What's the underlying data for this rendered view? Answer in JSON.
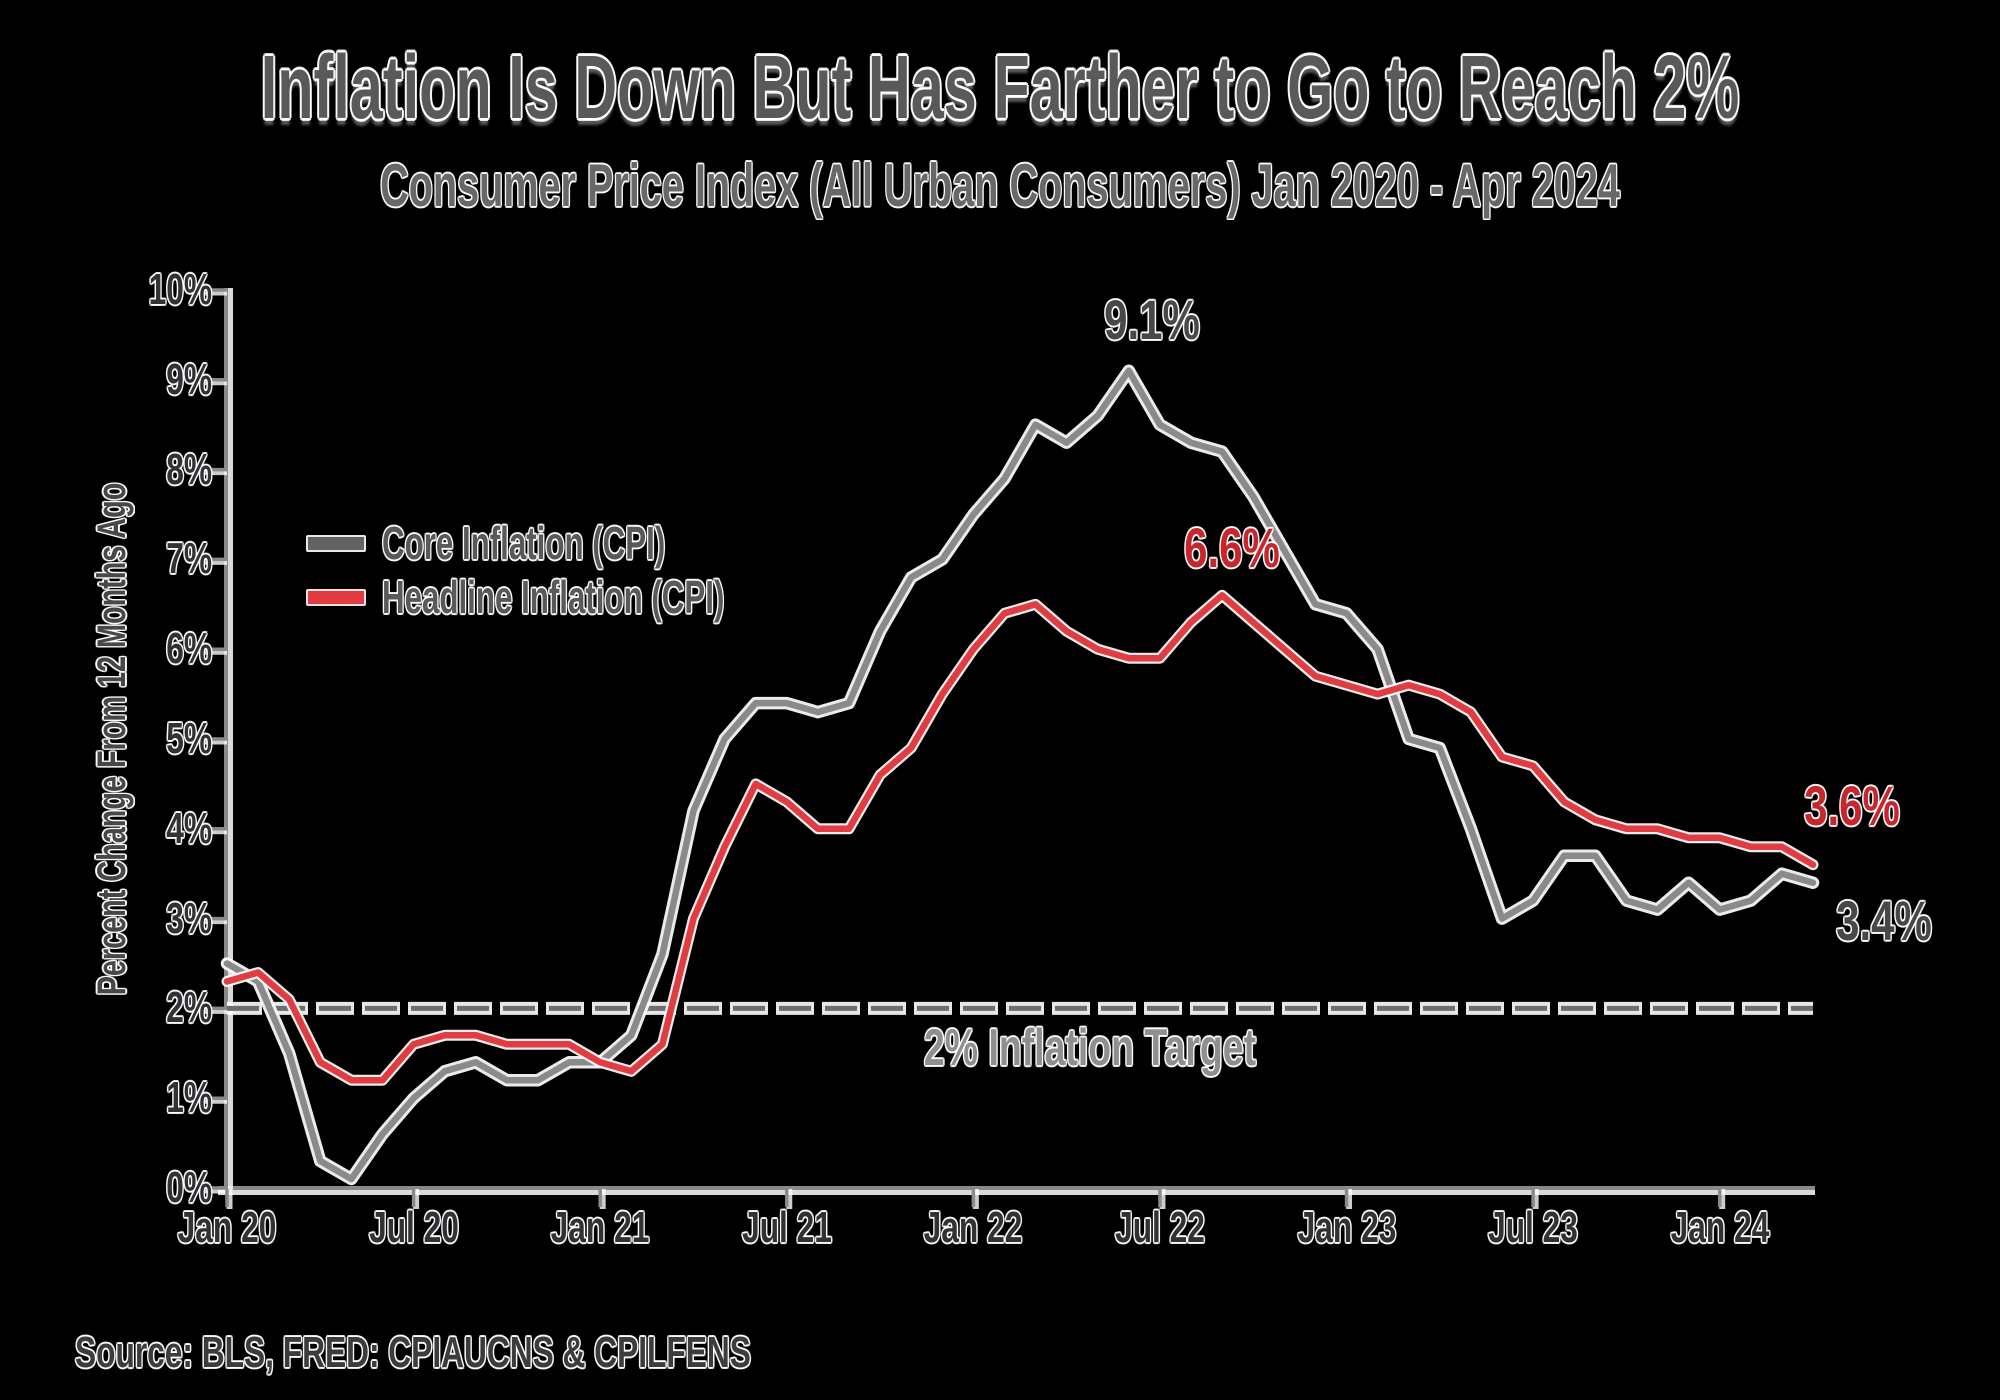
{
  "source": "Source: BLS, FRED: CPIAUCNS & CPILFENS",
  "colors": {
    "background": "#000000",
    "core_line_gray": "#8a8a8d",
    "headline_line_red": "#e03c41",
    "red_label": "#c8262d",
    "gray_label": "#48484b",
    "axis_gray": "#8a8a8c",
    "target_dash_gray": "#6e6e71",
    "white_casing": "#ffffff"
  },
  "chart_data": {
    "type": "line",
    "title": "Inflation Is Down But Has Farther to Go to Reach 2%",
    "subtitle": "Consumer Price Index (All Urban Consumers) Jan 2020 - Apr 2024",
    "ylabel": "Percent Change From 12 Months Ago",
    "xlabel": "",
    "x_start": "Jan 2020",
    "x_end": "Apr 2024",
    "frequency": "monthly",
    "ylim": [
      0,
      10
    ],
    "grid": false,
    "legend_position": "upper-left-inside",
    "y_tick_labels": [
      "0%",
      "1%",
      "2%",
      "3%",
      "4%",
      "5%",
      "6%",
      "7%",
      "8%",
      "9%",
      "10%"
    ],
    "x_tick_labels": [
      "Jan 20",
      "Jul 20",
      "Jan 21",
      "Jul 21",
      "Jan 22",
      "Jul 22",
      "Jan 23",
      "Jul 23",
      "Jan 24"
    ],
    "series": [
      {
        "name": "Core Inflation (CPI)",
        "color": "#8a8a8d",
        "values": [
          2.5,
          2.3,
          1.5,
          0.3,
          0.1,
          0.6,
          1.0,
          1.3,
          1.4,
          1.2,
          1.2,
          1.4,
          1.4,
          1.7,
          2.6,
          4.2,
          5.0,
          5.4,
          5.4,
          5.3,
          5.4,
          6.2,
          6.8,
          7.0,
          7.5,
          7.9,
          8.5,
          8.3,
          8.6,
          9.1,
          8.5,
          8.3,
          8.2,
          7.7,
          7.1,
          6.5,
          6.4,
          6.0,
          5.0,
          4.9,
          4.0,
          3.0,
          3.2,
          3.7,
          3.7,
          3.2,
          3.1,
          3.4,
          3.1,
          3.2,
          3.5,
          3.4
        ]
      },
      {
        "name": "Headline Inflation (CPI)",
        "color": "#e03c41",
        "values": [
          2.3,
          2.4,
          2.1,
          1.4,
          1.2,
          1.2,
          1.6,
          1.7,
          1.7,
          1.6,
          1.6,
          1.6,
          1.4,
          1.3,
          1.6,
          3.0,
          3.8,
          4.5,
          4.3,
          4.0,
          4.0,
          4.6,
          4.9,
          5.5,
          6.0,
          6.4,
          6.5,
          6.2,
          6.0,
          5.9,
          5.9,
          6.3,
          6.6,
          6.3,
          6.0,
          5.7,
          5.6,
          5.5,
          5.6,
          5.5,
          5.3,
          4.8,
          4.7,
          4.3,
          4.1,
          4.0,
          4.0,
          3.9,
          3.9,
          3.8,
          3.8,
          3.6
        ]
      }
    ],
    "target_line": {
      "value": 2,
      "style": "dashed"
    },
    "annotations": [
      {
        "id": "peak-gray",
        "text": "9.1%",
        "refers_to": "gray series peak Jun 2022"
      },
      {
        "id": "peak-red",
        "text": "6.6%",
        "refers_to": "red series peak Sep 2022"
      },
      {
        "id": "end-red",
        "text": "3.6%",
        "refers_to": "red series end Apr 2024"
      },
      {
        "id": "end-gray",
        "text": "3.4%",
        "refers_to": "gray series end Apr 2024"
      },
      {
        "id": "target-label",
        "text": "2% Inflation Target",
        "refers_to": "dashed target line"
      }
    ]
  }
}
